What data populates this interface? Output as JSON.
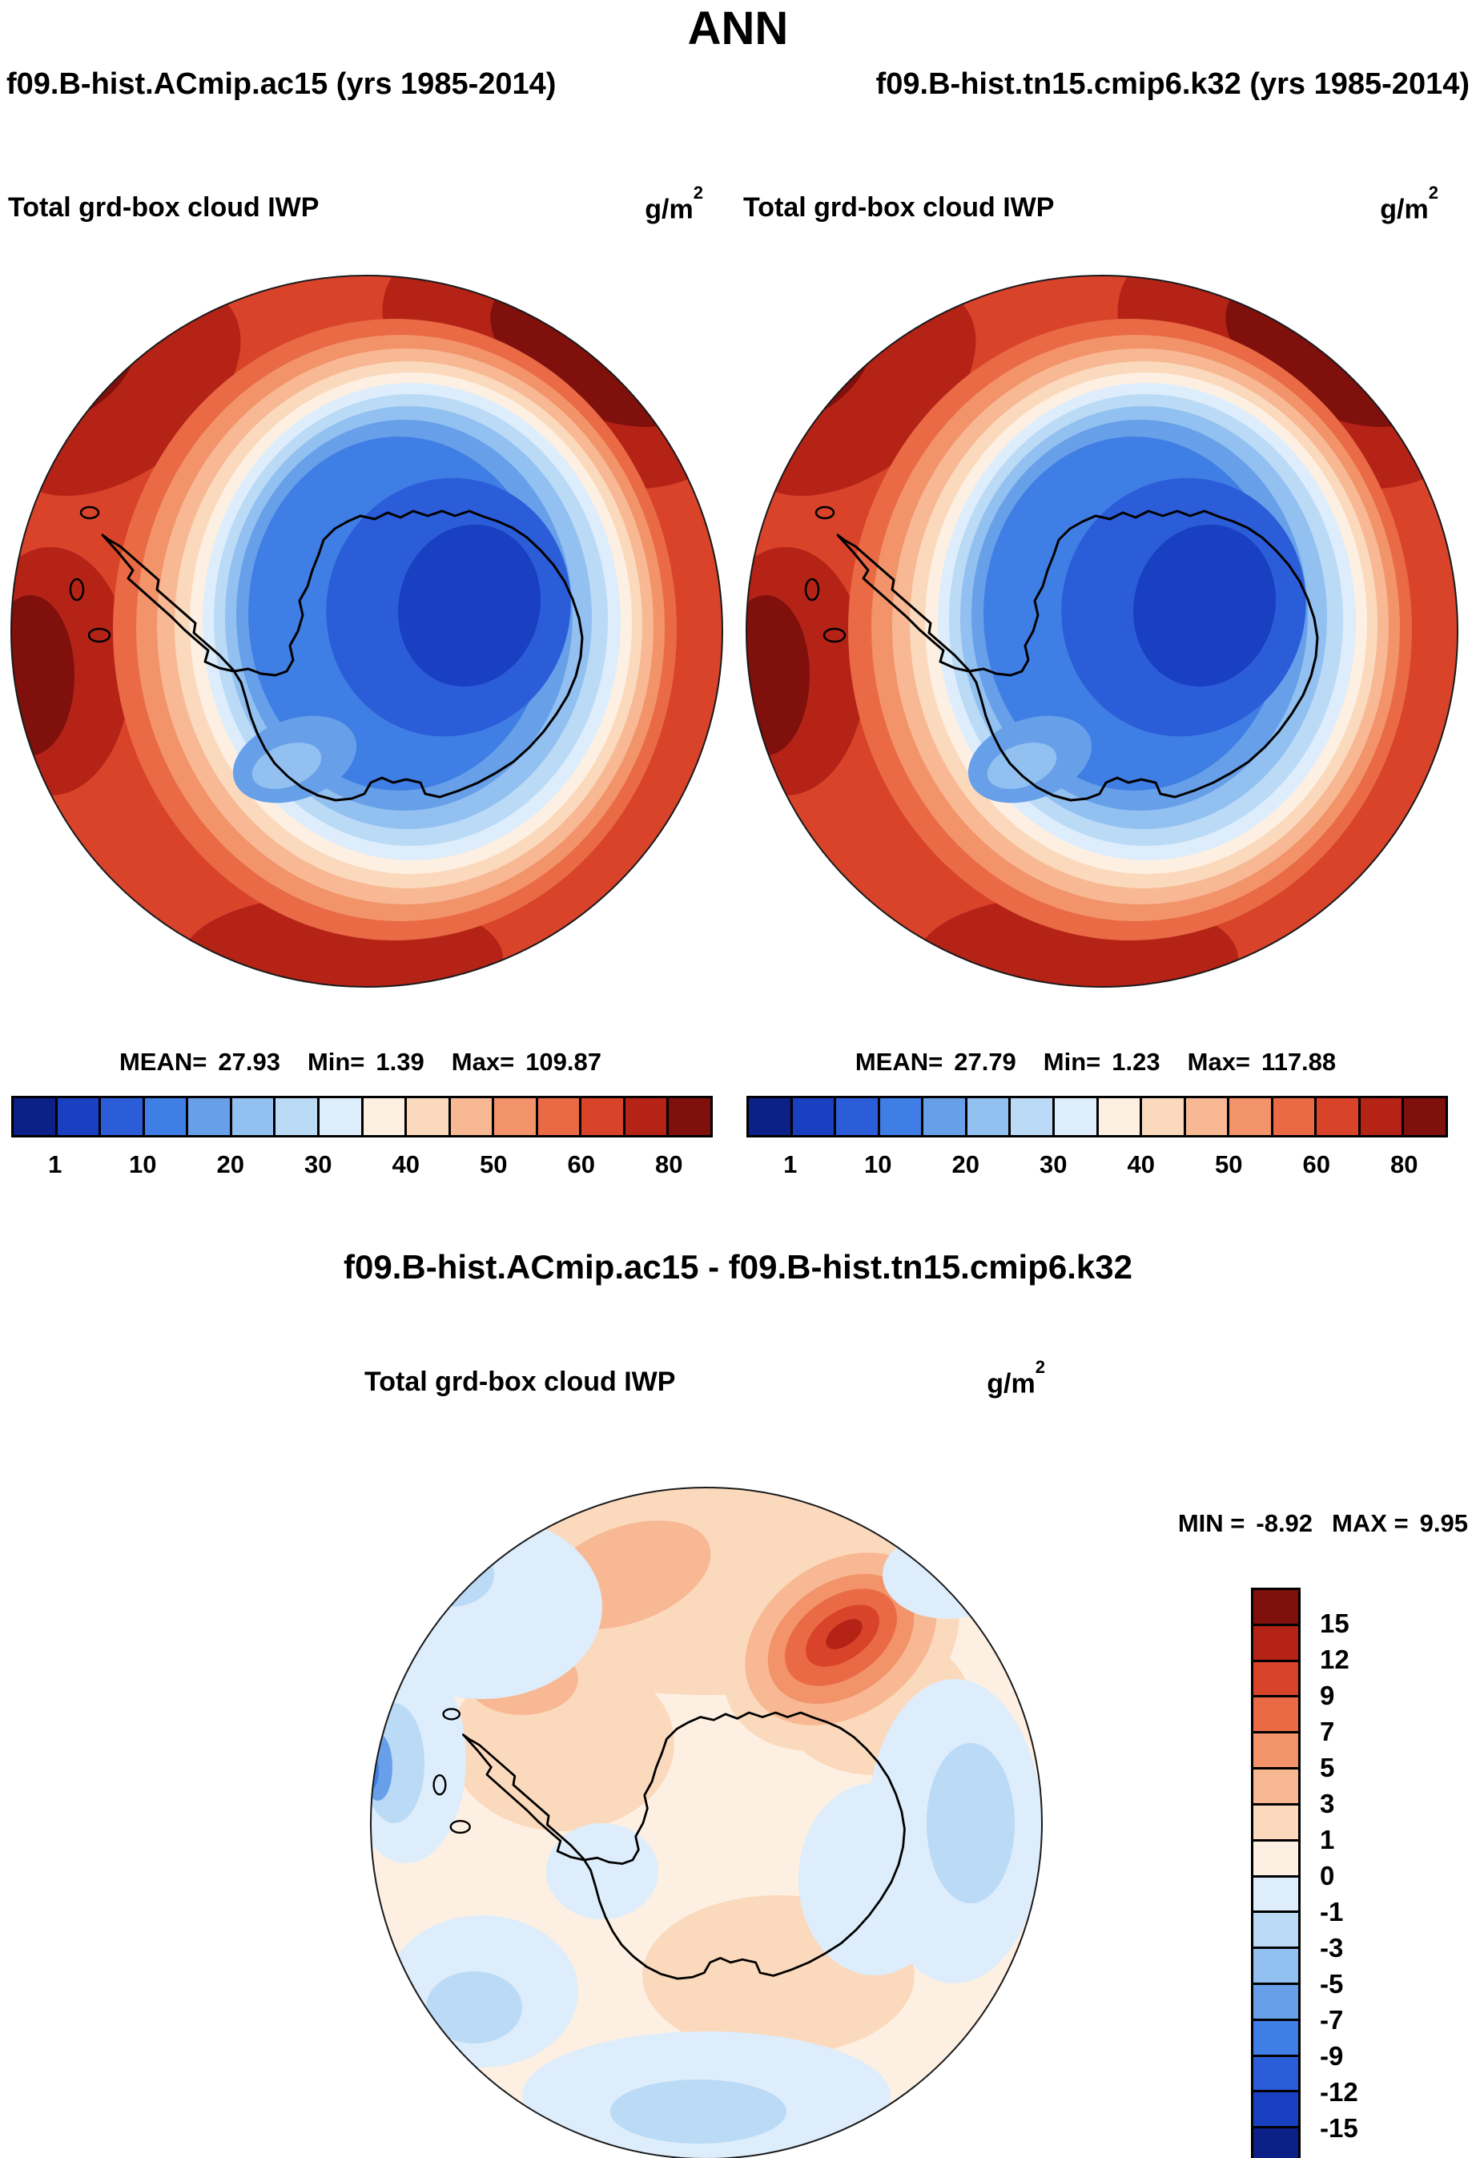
{
  "title": "ANN",
  "header": {
    "left_case": "f09.B-hist.ACmip.ac15 (yrs 1985-2014)",
    "right_case": "f09.B-hist.tn15.cmip6.k32 (yrs 1985-2014)"
  },
  "panels": [
    {
      "field_label": "Total grd-box cloud IWP",
      "units": "g/m",
      "units_sup": "2",
      "stats": {
        "mean_label": "MEAN=",
        "mean": "27.93",
        "min_label": "Min=",
        "min": "1.39",
        "max_label": "Max=",
        "max": "109.87"
      }
    },
    {
      "field_label": "Total grd-box cloud IWP",
      "units": "g/m",
      "units_sup": "2",
      "stats": {
        "mean_label": "MEAN=",
        "mean": "27.79",
        "min_label": "Min=",
        "min": "1.23",
        "max_label": "Max=",
        "max": "117.88"
      }
    }
  ],
  "colorbar": {
    "tick_labels": [
      "1",
      "10",
      "20",
      "30",
      "40",
      "50",
      "60",
      "80"
    ],
    "colors": [
      "#0c2187",
      "#1a40c2",
      "#2b5dd9",
      "#3f7ee4",
      "#67a0e9",
      "#92c0f0",
      "#badaf6",
      "#ddedfb",
      "#fdf0e2",
      "#fbd9bc",
      "#f7b893",
      "#f2936a",
      "#e96a45",
      "#d8432a",
      "#b52317",
      "#7f100c"
    ]
  },
  "diff": {
    "title": "f09.B-hist.ACmip.ac15 - f09.B-hist.tn15.cmip6.k32",
    "field_label": "Total grd-box cloud IWP",
    "units": "g/m",
    "units_sup": "2",
    "min_label": "MIN =",
    "min": "-8.92",
    "max_label": "MAX =",
    "max": "9.95",
    "colorbar_labels": [
      "15",
      "12",
      "9",
      "7",
      "5",
      "3",
      "1",
      "0",
      "-1",
      "-3",
      "-5",
      "-7",
      "-9",
      "-12",
      "-15"
    ],
    "colorbar_colors": [
      "#7f100c",
      "#b52317",
      "#d8432a",
      "#e96a45",
      "#f2936a",
      "#f7b893",
      "#fbd9bc",
      "#fdf0e2",
      "#ddedfb",
      "#badaf6",
      "#92c0f0",
      "#67a0e9",
      "#3f7ee4",
      "#2b5dd9",
      "#1a40c2",
      "#0c2187"
    ]
  },
  "palette": {
    "colors": [
      "#0c2187",
      "#1a40c2",
      "#2b5dd9",
      "#3f7ee4",
      "#67a0e9",
      "#92c0f0",
      "#badaf6",
      "#ddedfb",
      "#fdf0e2",
      "#fbd9bc",
      "#f7b893",
      "#f2936a",
      "#e96a45",
      "#d8432a",
      "#b52317",
      "#7f100c"
    ]
  },
  "chart_data": [
    {
      "type": "heatmap",
      "subtype": "filled-contour polar map",
      "projection": "south polar stereographic (Antarctica centered)",
      "title": "Total grd-box cloud IWP — f09.B-hist.ACmip.ac15 (yrs 1985-2014)",
      "units": "g/m2",
      "contour_levels": [
        1,
        5,
        10,
        15,
        20,
        25,
        30,
        35,
        40,
        45,
        50,
        55,
        60,
        70,
        80
      ],
      "legend_tick_labels": [
        1,
        10,
        20,
        30,
        40,
        50,
        60,
        80
      ],
      "mean": 27.93,
      "min": 1.39,
      "max": 109.87,
      "palette": "16-class blue (low) to red (high) diverging",
      "pattern": "IWP below ~10 g/m2 (dark blue) over the East Antarctic interior, increasing outward through 20-40 g/m2 near the coastline, reaching 50-80+ g/m2 (red to dark red) over the surrounding Southern Ocean with maxima in the upper-left, upper-right and bottom sectors of the map edge"
    },
    {
      "type": "heatmap",
      "subtype": "filled-contour polar map",
      "projection": "south polar stereographic (Antarctica centered)",
      "title": "Total grd-box cloud IWP — f09.B-hist.tn15.cmip6.k32 (yrs 1985-2014)",
      "units": "g/m2",
      "contour_levels": [
        1,
        5,
        10,
        15,
        20,
        25,
        30,
        35,
        40,
        45,
        50,
        55,
        60,
        70,
        80
      ],
      "legend_tick_labels": [
        1,
        10,
        20,
        30,
        40,
        50,
        60,
        80
      ],
      "mean": 27.79,
      "min": 1.23,
      "max": 117.88,
      "palette": "16-class blue (low) to red (high) diverging",
      "pattern": "nearly identical spatial structure to the left panel: low IWP (blue) over the Antarctic interior, high IWP (red) ring over the Southern Ocean"
    },
    {
      "type": "heatmap",
      "subtype": "filled-contour polar difference map",
      "projection": "south polar stereographic (Antarctica centered)",
      "title": "Total grd-box cloud IWP — f09.B-hist.ACmip.ac15 minus f09.B-hist.tn15.cmip6.k32",
      "units": "g/m2",
      "contour_levels": [
        -15,
        -12,
        -9,
        -7,
        -5,
        -3,
        -1,
        0,
        1,
        3,
        5,
        7,
        9,
        12,
        15
      ],
      "min": -8.92,
      "max": 9.95,
      "palette": "16-class blue (negative) to red (positive) diverging",
      "pattern": "differences mostly within ±1 g/m2 (pale tones) over the continent, weak negative bands (light blue, -1 to -5) around the ocean ring and map edges with a stronger negative spot at the far left, and a localized positive anomaly (orange-red, +5 to +9) north of the continent near the top of the map"
    }
  ]
}
